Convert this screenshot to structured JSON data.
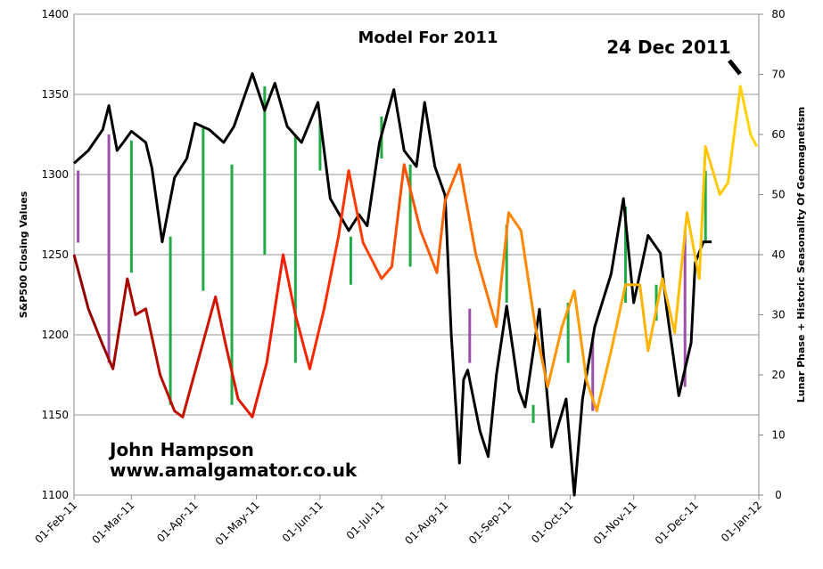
{
  "chart_data": {
    "type": "line",
    "title": "Model For 2011",
    "y_label": "S&P500 Closing Values",
    "y2_label": "Lunar Phase + Historic Seasonality Of Geomagnetism",
    "annotations": [
      "24 Dec 2011",
      "John Hampson",
      "www.amalgamator.co.uk"
    ],
    "xlim": [
      "2011-02-01",
      "2012-01-01"
    ],
    "xticks": [
      {
        "value": "2011-02-01",
        "label": "01-Feb-11"
      },
      {
        "value": "2011-03-01",
        "label": "01-Mar-11"
      },
      {
        "value": "2011-04-01",
        "label": "01-Apr-11"
      },
      {
        "value": "2011-05-01",
        "label": "01-May-11"
      },
      {
        "value": "2011-06-01",
        "label": "01-Jun-11"
      },
      {
        "value": "2011-07-01",
        "label": "01-Jul-11"
      },
      {
        "value": "2011-08-01",
        "label": "01-Aug-11"
      },
      {
        "value": "2011-09-01",
        "label": "01-Sep-11"
      },
      {
        "value": "2011-10-01",
        "label": "01-Oct-11"
      },
      {
        "value": "2011-11-01",
        "label": "01-Nov-11"
      },
      {
        "value": "2011-12-01",
        "label": "01-Dec-11"
      },
      {
        "value": "2012-01-01",
        "label": "01-Jan-12"
      }
    ],
    "ylim": [
      1100,
      1400
    ],
    "yticks": [
      1100,
      1150,
      1200,
      1250,
      1300,
      1350,
      1400
    ],
    "y2lim": [
      0,
      80
    ],
    "y2ticks": [
      0,
      10,
      20,
      30,
      40,
      50,
      60,
      70,
      80
    ],
    "grid": true,
    "series": [
      {
        "color": "#000000",
        "x": [
          "2011-02-01",
          "2011-02-08",
          "2011-02-15",
          "2011-02-18",
          "2011-02-22",
          "2011-02-25",
          "2011-03-01",
          "2011-03-08",
          "2011-03-11",
          "2011-03-16",
          "2011-03-22",
          "2011-03-28",
          "2011-04-01",
          "2011-04-08",
          "2011-04-15",
          "2011-04-20",
          "2011-04-29",
          "2011-05-05",
          "2011-05-10",
          "2011-05-16",
          "2011-05-23",
          "2011-05-31",
          "2011-06-06",
          "2011-06-15",
          "2011-06-20",
          "2011-06-24",
          "2011-06-30",
          "2011-07-07",
          "2011-07-12",
          "2011-07-18",
          "2011-07-22",
          "2011-07-27",
          "2011-08-01",
          "2011-08-04",
          "2011-08-08",
          "2011-08-10",
          "2011-08-12",
          "2011-08-18",
          "2011-08-22",
          "2011-08-26",
          "2011-08-31",
          "2011-09-06",
          "2011-09-09",
          "2011-09-16",
          "2011-09-22",
          "2011-09-29",
          "2011-10-03",
          "2011-10-07",
          "2011-10-13",
          "2011-10-21",
          "2011-10-27",
          "2011-11-01",
          "2011-11-08",
          "2011-11-14",
          "2011-11-17",
          "2011-11-23",
          "2011-11-29",
          "2011-12-01",
          "2011-12-05",
          "2011-12-09"
        ],
        "values": [
          1307,
          1315,
          1328,
          1343,
          1315,
          1320,
          1327,
          1320,
          1304,
          1258,
          1298,
          1310,
          1332,
          1328,
          1320,
          1330,
          1363,
          1340,
          1357,
          1330,
          1320,
          1345,
          1285,
          1265,
          1275,
          1268,
          1320,
          1353,
          1315,
          1305,
          1345,
          1305,
          1287,
          1200,
          1120,
          1172,
          1178,
          1140,
          1124,
          1175,
          1218,
          1165,
          1155,
          1216,
          1130,
          1160,
          1100,
          1160,
          1205,
          1238,
          1285,
          1220,
          1262,
          1251,
          1217,
          1162,
          1195,
          1245,
          1258,
          1258
        ]
      },
      {
        "axis": "y2",
        "colors": [
          "#8b0000",
          "#ff2000",
          "#ff8c00",
          "#ffd700"
        ],
        "x": [
          "2011-02-01",
          "2011-02-08",
          "2011-02-15",
          "2011-02-20",
          "2011-02-27",
          "2011-03-03",
          "2011-03-08",
          "2011-03-15",
          "2011-03-22",
          "2011-03-26",
          "2011-04-03",
          "2011-04-11",
          "2011-04-16",
          "2011-04-22",
          "2011-04-29",
          "2011-05-06",
          "2011-05-14",
          "2011-05-20",
          "2011-05-27",
          "2011-06-03",
          "2011-06-10",
          "2011-06-15",
          "2011-06-22",
          "2011-07-01",
          "2011-07-06",
          "2011-07-12",
          "2011-07-20",
          "2011-07-28",
          "2011-08-01",
          "2011-08-08",
          "2011-08-16",
          "2011-08-26",
          "2011-09-01",
          "2011-09-07",
          "2011-09-14",
          "2011-09-20",
          "2011-09-27",
          "2011-10-03",
          "2011-10-09",
          "2011-10-14",
          "2011-10-21",
          "2011-10-28",
          "2011-11-04",
          "2011-11-08",
          "2011-11-15",
          "2011-11-21",
          "2011-11-27",
          "2011-12-03",
          "2011-12-06",
          "2011-12-13",
          "2011-12-17",
          "2011-12-23",
          "2011-12-28",
          "2011-12-31"
        ],
        "values": [
          40,
          31,
          25,
          21,
          36,
          30,
          31,
          20,
          14,
          13,
          23,
          33,
          25,
          16,
          13,
          22,
          40,
          30,
          21,
          31,
          43,
          54,
          42,
          36,
          38,
          55,
          44,
          37,
          49,
          55,
          40,
          28,
          47,
          44,
          28,
          18,
          28,
          34,
          19,
          14,
          24,
          35,
          35,
          24,
          36,
          27,
          47,
          36,
          58,
          50,
          52,
          68,
          60,
          58
        ]
      }
    ],
    "markers": [
      {
        "x": "2011-02-03",
        "from": 42,
        "to": 54,
        "color": "#9b4fa8"
      },
      {
        "x": "2011-02-18",
        "from": 22,
        "to": 60,
        "color": "#9b4fa8"
      },
      {
        "x": "2011-03-01",
        "from": 37,
        "to": 59,
        "color": "#22aa44"
      },
      {
        "x": "2011-03-20",
        "from": 15,
        "to": 43,
        "color": "#22aa44"
      },
      {
        "x": "2011-04-05",
        "from": 34,
        "to": 61,
        "color": "#22aa44"
      },
      {
        "x": "2011-04-19",
        "from": 15,
        "to": 55,
        "color": "#22aa44"
      },
      {
        "x": "2011-05-05",
        "from": 40,
        "to": 68,
        "color": "#22aa44"
      },
      {
        "x": "2011-05-20",
        "from": 22,
        "to": 60,
        "color": "#22aa44"
      },
      {
        "x": "2011-06-01",
        "from": 54,
        "to": 63,
        "color": "#22aa44"
      },
      {
        "x": "2011-06-16",
        "from": 35,
        "to": 43,
        "color": "#22aa44"
      },
      {
        "x": "2011-07-01",
        "from": 56,
        "to": 63,
        "color": "#22aa44"
      },
      {
        "x": "2011-07-15",
        "from": 38,
        "to": 55,
        "color": "#22aa44"
      },
      {
        "x": "2011-08-13",
        "from": 22,
        "to": 31,
        "color": "#9b4fa8"
      },
      {
        "x": "2011-08-31",
        "from": 32,
        "to": 45,
        "color": "#22aa44"
      },
      {
        "x": "2011-09-13",
        "from": 12,
        "to": 15,
        "color": "#22aa44"
      },
      {
        "x": "2011-09-30",
        "from": 22,
        "to": 32,
        "color": "#22aa44"
      },
      {
        "x": "2011-10-12",
        "from": 14,
        "to": 26,
        "color": "#9b4fa8"
      },
      {
        "x": "2011-10-28",
        "from": 32,
        "to": 48,
        "color": "#22aa44"
      },
      {
        "x": "2011-11-12",
        "from": 29,
        "to": 35,
        "color": "#22aa44"
      },
      {
        "x": "2011-11-26",
        "from": 18,
        "to": 44,
        "color": "#9b4fa8"
      },
      {
        "x": "2011-12-06",
        "from": 42,
        "to": 54,
        "color": "#22aa44"
      }
    ]
  }
}
